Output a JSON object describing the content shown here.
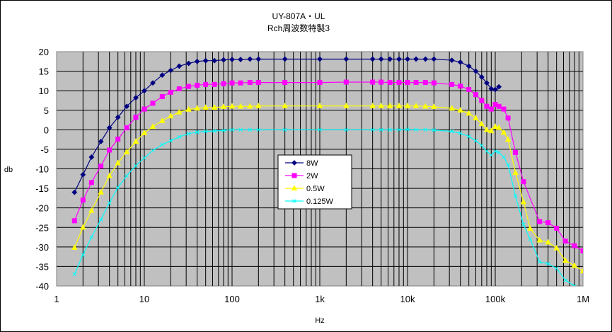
{
  "chart_data": {
    "type": "line",
    "title": "UY-807A・UL",
    "subtitle": "Rch周波数特製3",
    "xlabel": "Hz",
    "ylabel": "db",
    "x_scale": "log",
    "xlim": [
      1,
      1000000
    ],
    "ylim": [
      -40,
      20
    ],
    "grid": true,
    "legend_position": "center",
    "plot_background": "#c0c0c0",
    "x_ticks": [
      {
        "value": 1,
        "label": "1"
      },
      {
        "value": 10,
        "label": "10"
      },
      {
        "value": 100,
        "label": "100"
      },
      {
        "value": 1000,
        "label": "1k"
      },
      {
        "value": 10000,
        "label": "10k"
      },
      {
        "value": 100000,
        "label": "100k"
      },
      {
        "value": 1000000,
        "label": "1M"
      }
    ],
    "y_ticks": [
      20,
      15,
      10,
      5,
      0,
      -5,
      -10,
      -15,
      -20,
      -25,
      -30,
      -35,
      -40
    ],
    "series": [
      {
        "name": "8W",
        "color": "#000080",
        "marker": "diamond",
        "points": [
          [
            1.6,
            -16
          ],
          [
            2,
            -11.5
          ],
          [
            2.5,
            -7
          ],
          [
            3.2,
            -3
          ],
          [
            4,
            0.5
          ],
          [
            5,
            3.2
          ],
          [
            6.3,
            6
          ],
          [
            8,
            8.2
          ],
          [
            10,
            10
          ],
          [
            12.5,
            12
          ],
          [
            16,
            14
          ],
          [
            20,
            15.2
          ],
          [
            25,
            16.3
          ],
          [
            32,
            17
          ],
          [
            40,
            17.5
          ],
          [
            50,
            17.7
          ],
          [
            63,
            17.7
          ],
          [
            80,
            17.9
          ],
          [
            100,
            18
          ],
          [
            125,
            18
          ],
          [
            160,
            18.1
          ],
          [
            200,
            18.1
          ],
          [
            400,
            18.1
          ],
          [
            1000,
            18.1
          ],
          [
            2000,
            18.1
          ],
          [
            4000,
            18.1
          ],
          [
            5000,
            18.1
          ],
          [
            6300,
            18.1
          ],
          [
            8000,
            18.1
          ],
          [
            10000,
            18.1
          ],
          [
            12500,
            18.1
          ],
          [
            16000,
            18.1
          ],
          [
            20000,
            18.1
          ],
          [
            32000,
            17.8
          ],
          [
            40000,
            17.3
          ],
          [
            50000,
            16.3
          ],
          [
            60000,
            15
          ],
          [
            70000,
            13.5
          ],
          [
            80000,
            12
          ],
          [
            90000,
            10.5
          ],
          [
            100000,
            10.3
          ],
          [
            110000,
            11
          ]
        ]
      },
      {
        "name": "2W",
        "color": "#ff00ff",
        "marker": "square",
        "points": [
          [
            1.6,
            -23.3
          ],
          [
            2,
            -18
          ],
          [
            2.5,
            -13.5
          ],
          [
            3.2,
            -9.3
          ],
          [
            4,
            -5.2
          ],
          [
            5,
            -2.4
          ],
          [
            6.3,
            0.5
          ],
          [
            8,
            3.2
          ],
          [
            10,
            5.3
          ],
          [
            12.5,
            6.8
          ],
          [
            16,
            8.5
          ],
          [
            20,
            9.6
          ],
          [
            25,
            10.5
          ],
          [
            32,
            11.1
          ],
          [
            40,
            11.4
          ],
          [
            50,
            11.6
          ],
          [
            63,
            11.6
          ],
          [
            80,
            11.8
          ],
          [
            100,
            12
          ],
          [
            125,
            12
          ],
          [
            160,
            12.1
          ],
          [
            200,
            12.1
          ],
          [
            400,
            12.1
          ],
          [
            1000,
            12.1
          ],
          [
            2000,
            12.2
          ],
          [
            4000,
            12.2
          ],
          [
            5000,
            12.2
          ],
          [
            6300,
            12.1
          ],
          [
            8000,
            12.1
          ],
          [
            10000,
            12.1
          ],
          [
            12500,
            12.1
          ],
          [
            16000,
            12.1
          ],
          [
            20000,
            12
          ],
          [
            32000,
            11.6
          ],
          [
            40000,
            11.2
          ],
          [
            50000,
            10.3
          ],
          [
            60000,
            9
          ],
          [
            70000,
            7.5
          ],
          [
            80000,
            6
          ],
          [
            90000,
            5.3
          ],
          [
            100000,
            6.5
          ],
          [
            110000,
            6
          ],
          [
            125000,
            5.3
          ],
          [
            140000,
            3
          ],
          [
            170000,
            -5.8
          ],
          [
            210000,
            -13.3
          ],
          [
            320000,
            -23.5
          ],
          [
            400000,
            -23.8
          ],
          [
            500000,
            -25.2
          ],
          [
            630000,
            -28.5
          ],
          [
            800000,
            -29.7
          ],
          [
            1000000,
            -31
          ]
        ]
      },
      {
        "name": "0.5W",
        "color": "#ffff00",
        "marker": "triangle",
        "points": [
          [
            1.6,
            -30.2
          ],
          [
            2,
            -25
          ],
          [
            2.5,
            -20.7
          ],
          [
            3.2,
            -16
          ],
          [
            4,
            -11.8
          ],
          [
            5,
            -8.5
          ],
          [
            6.3,
            -5.7
          ],
          [
            8,
            -3
          ],
          [
            10,
            -0.8
          ],
          [
            12.5,
            0.8
          ],
          [
            16,
            2.3
          ],
          [
            20,
            3.5
          ],
          [
            25,
            4.5
          ],
          [
            32,
            5.2
          ],
          [
            40,
            5.5
          ],
          [
            50,
            5.7
          ],
          [
            63,
            5.7
          ],
          [
            80,
            5.9
          ],
          [
            100,
            6
          ],
          [
            125,
            6
          ],
          [
            160,
            6
          ],
          [
            200,
            6.1
          ],
          [
            400,
            6.1
          ],
          [
            1000,
            6.1
          ],
          [
            2000,
            6.1
          ],
          [
            4000,
            6.1
          ],
          [
            5000,
            6.1
          ],
          [
            6300,
            6.1
          ],
          [
            8000,
            6.1
          ],
          [
            10000,
            6.1
          ],
          [
            12500,
            6.1
          ],
          [
            16000,
            6
          ],
          [
            20000,
            5.9
          ],
          [
            32000,
            5.5
          ],
          [
            40000,
            5
          ],
          [
            50000,
            4.2
          ],
          [
            60000,
            3
          ],
          [
            70000,
            1.5
          ],
          [
            80000,
            0
          ],
          [
            90000,
            -0.3
          ],
          [
            100000,
            0.8
          ],
          [
            110000,
            0.5
          ],
          [
            125000,
            -0.7
          ],
          [
            140000,
            -2.5
          ],
          [
            170000,
            -11
          ],
          [
            210000,
            -18.5
          ],
          [
            250000,
            -25.3
          ],
          [
            320000,
            -28.3
          ],
          [
            400000,
            -28.8
          ],
          [
            500000,
            -30.3
          ],
          [
            630000,
            -33.5
          ],
          [
            800000,
            -34.8
          ],
          [
            1000000,
            -36.2
          ]
        ]
      },
      {
        "name": "0.125W",
        "color": "#00ffff",
        "marker": "x",
        "points": [
          [
            1.6,
            -37
          ],
          [
            2,
            -32
          ],
          [
            2.5,
            -27.5
          ],
          [
            3.2,
            -23
          ],
          [
            4,
            -18.7
          ],
          [
            5,
            -14.8
          ],
          [
            6.3,
            -11.8
          ],
          [
            8,
            -9.2
          ],
          [
            10,
            -7.2
          ],
          [
            12.5,
            -5.3
          ],
          [
            16,
            -3.8
          ],
          [
            20,
            -2.8
          ],
          [
            25,
            -1.8
          ],
          [
            32,
            -1
          ],
          [
            40,
            -0.6
          ],
          [
            50,
            -0.4
          ],
          [
            63,
            -0.3
          ],
          [
            80,
            -0.2
          ],
          [
            100,
            0
          ],
          [
            125,
            0
          ],
          [
            160,
            0
          ],
          [
            200,
            0
          ],
          [
            400,
            0
          ],
          [
            1000,
            0
          ],
          [
            2000,
            0
          ],
          [
            4000,
            0
          ],
          [
            5000,
            0
          ],
          [
            6300,
            0
          ],
          [
            8000,
            0
          ],
          [
            10000,
            0.1
          ],
          [
            12500,
            0
          ],
          [
            16000,
            0
          ],
          [
            20000,
            -0.1
          ],
          [
            32000,
            -0.4
          ],
          [
            40000,
            -0.9
          ],
          [
            50000,
            -1.7
          ],
          [
            60000,
            -2.8
          ],
          [
            70000,
            -4
          ],
          [
            80000,
            -5.5
          ],
          [
            90000,
            -6.5
          ],
          [
            100000,
            -5.5
          ],
          [
            110000,
            -5.8
          ],
          [
            125000,
            -7
          ],
          [
            140000,
            -9
          ],
          [
            170000,
            -17
          ],
          [
            210000,
            -24.3
          ],
          [
            250000,
            -28
          ],
          [
            320000,
            -33.8
          ],
          [
            400000,
            -34.3
          ],
          [
            500000,
            -35.5
          ],
          [
            630000,
            -38.5
          ],
          [
            800000,
            -40
          ],
          [
            1000000,
            -41
          ]
        ]
      }
    ]
  }
}
